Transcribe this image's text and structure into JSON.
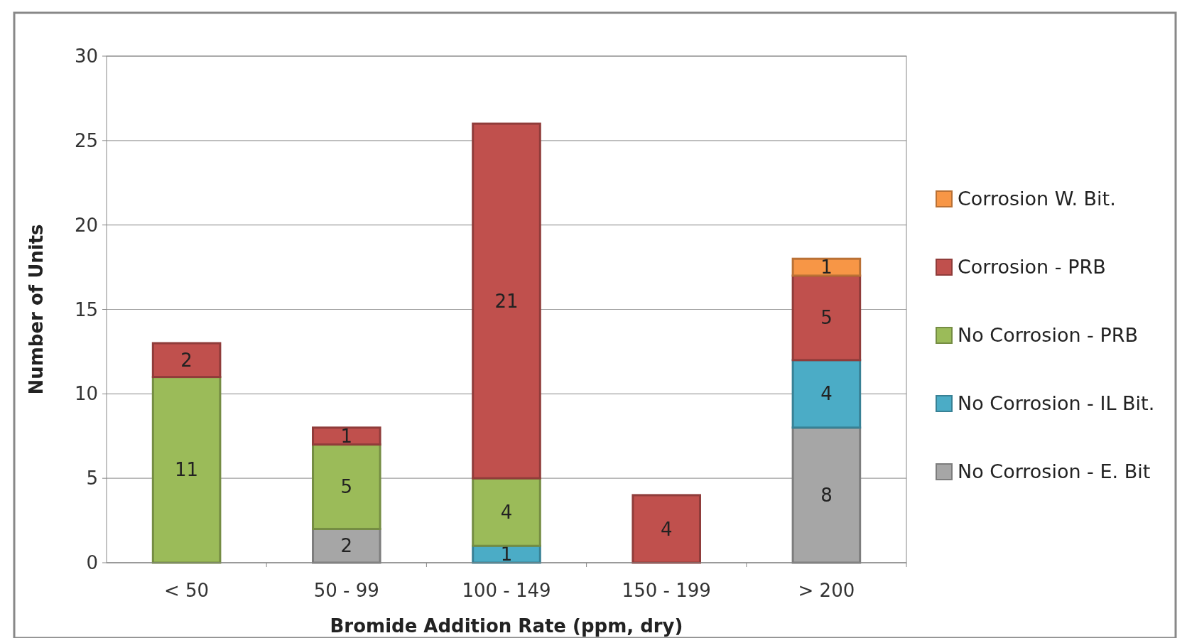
{
  "chart_data": {
    "type": "bar",
    "stacked": true,
    "xlabel": "Bromide Addition Rate (ppm, dry)",
    "ylabel": "Number of Units",
    "categories": [
      "< 50",
      "50 - 99",
      "100 - 149",
      "150 - 199",
      "> 200"
    ],
    "series": [
      {
        "name": "No Corrosion - E. Bit",
        "color": "#a6a6a6",
        "values": [
          null,
          2,
          null,
          null,
          8
        ]
      },
      {
        "name": "No Corrosion - IL Bit.",
        "color": "#4bacc6",
        "values": [
          null,
          null,
          1,
          null,
          4
        ]
      },
      {
        "name": "No Corrosion - PRB",
        "color": "#9bbb59",
        "values": [
          11,
          5,
          4,
          null,
          null
        ]
      },
      {
        "name": "Corrosion - PRB",
        "color": "#c0504d",
        "values": [
          2,
          1,
          21,
          4,
          5
        ]
      },
      {
        "name": "Corrosion W. Bit.",
        "color": "#f79646",
        "values": [
          null,
          null,
          null,
          null,
          1
        ]
      }
    ],
    "ylim": [
      0,
      30
    ],
    "yticks": [
      0,
      5,
      10,
      15,
      20,
      25,
      30
    ],
    "grid": "y",
    "legend": "right",
    "data_labels": true
  }
}
